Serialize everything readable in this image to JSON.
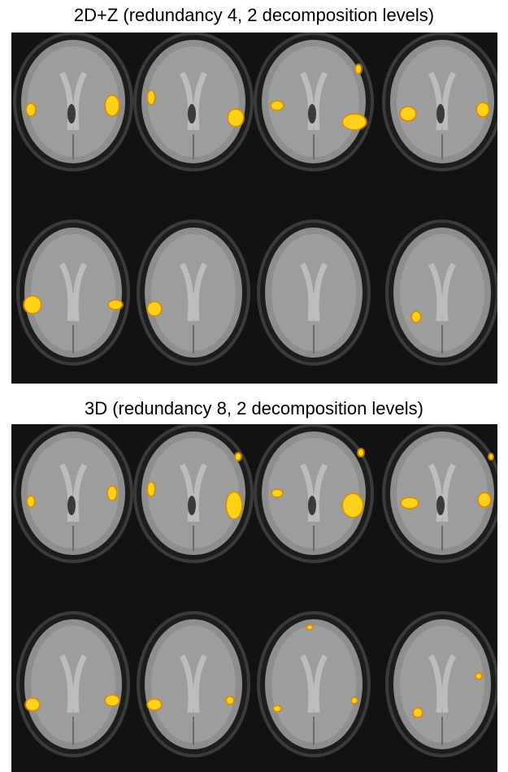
{
  "panels": [
    {
      "title": "2D+Z (redundancy 4, 2 decomposition levels)"
    },
    {
      "title": "3D (redundancy 8, 2 decomposition levels)"
    }
  ]
}
